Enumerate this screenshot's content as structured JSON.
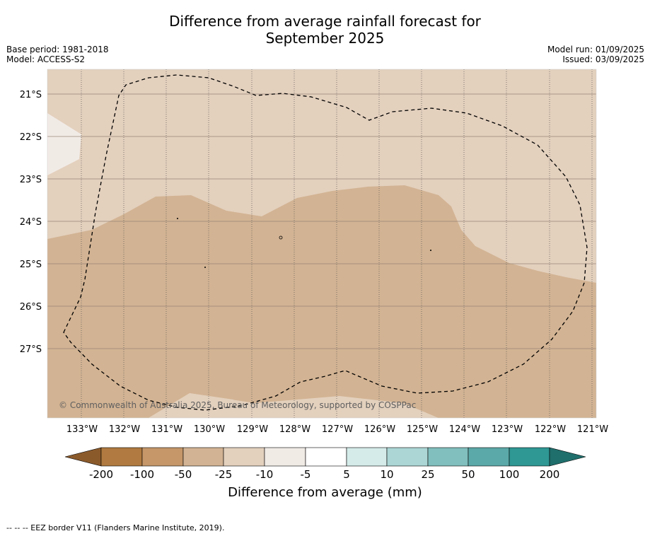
{
  "title_line1": "Difference from average rainfall forecast for",
  "title_line2": "September 2025",
  "base_period": "Base period: 1981-2018",
  "model": "Model: ACCESS-S2",
  "model_run": "Model run: 01/09/2025",
  "issued": "Issued: 03/09/2025",
  "copyright": "© Commonwealth of Australia 2025, Bureau of Meteorology, supported by COSPPac",
  "lon_labels": [
    "133°W",
    "132°W",
    "131°W",
    "130°W",
    "129°W",
    "128°W",
    "127°W",
    "126°W",
    "125°W",
    "124°W",
    "123°W",
    "122°W",
    "121°W"
  ],
  "lat_labels": [
    "21°S",
    "22°S",
    "23°S",
    "24°S",
    "25°S",
    "26°S",
    "27°S"
  ],
  "colorbar": {
    "title": "Difference from average (mm)",
    "ticks": [
      "-200",
      "-100",
      "-50",
      "-25",
      "-10",
      "-5",
      "5",
      "10",
      "25",
      "50",
      "100",
      "200"
    ],
    "colors": [
      "#8b5a2b",
      "#b07a40",
      "#c59769",
      "#d2b393",
      "#e3d0bd",
      "#f1ebe6",
      "#ffffff",
      "#d4ebe9",
      "#abd6d5",
      "#80bfbd",
      "#5ba9a8",
      "#2f9894",
      "#1f6f6c"
    ]
  },
  "footnote": "-- -- -- EEZ border V11 (Flanders Marine Institute, 2019)."
}
